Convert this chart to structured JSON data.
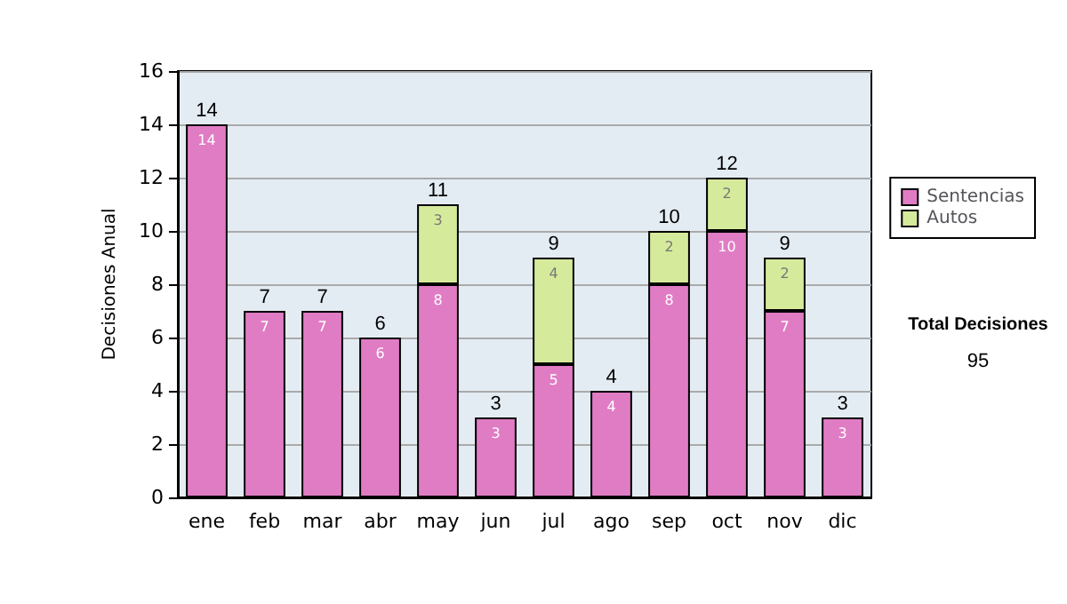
{
  "chart_data": {
    "type": "bar",
    "stacked": true,
    "ylabel": "Decisiones Anual",
    "categories": [
      "ene",
      "feb",
      "mar",
      "abr",
      "may",
      "jun",
      "jul",
      "ago",
      "sep",
      "oct",
      "nov",
      "dic"
    ],
    "series": [
      {
        "name": "Sentencias",
        "color": "#e07cc4",
        "values": [
          14,
          7,
          7,
          6,
          8,
          3,
          5,
          4,
          8,
          10,
          7,
          3
        ],
        "value_labels": [
          "14",
          "7",
          "7",
          "6",
          "8",
          "3",
          "5",
          "4",
          "8",
          "10",
          "7",
          "3"
        ]
      },
      {
        "name": "Autos",
        "color": "#d6ea9c",
        "values": [
          0,
          0,
          0,
          0,
          3,
          0,
          4,
          0,
          2,
          2,
          2,
          0
        ],
        "value_labels": [
          null,
          null,
          null,
          null,
          "3",
          null,
          "4",
          null,
          "2",
          "2",
          "2",
          null
        ]
      }
    ],
    "totals": [
      "14",
      "7",
      "7",
      "6",
      "11",
      "3",
      "9",
      "4",
      "10",
      "12",
      "9",
      "3"
    ],
    "ylim": [
      0,
      16
    ],
    "yticks": [
      0,
      2,
      4,
      6,
      8,
      10,
      12,
      14,
      16
    ],
    "grid": "y",
    "legend": "right",
    "annotations": [
      "Total Decisiones",
      "95"
    ]
  }
}
